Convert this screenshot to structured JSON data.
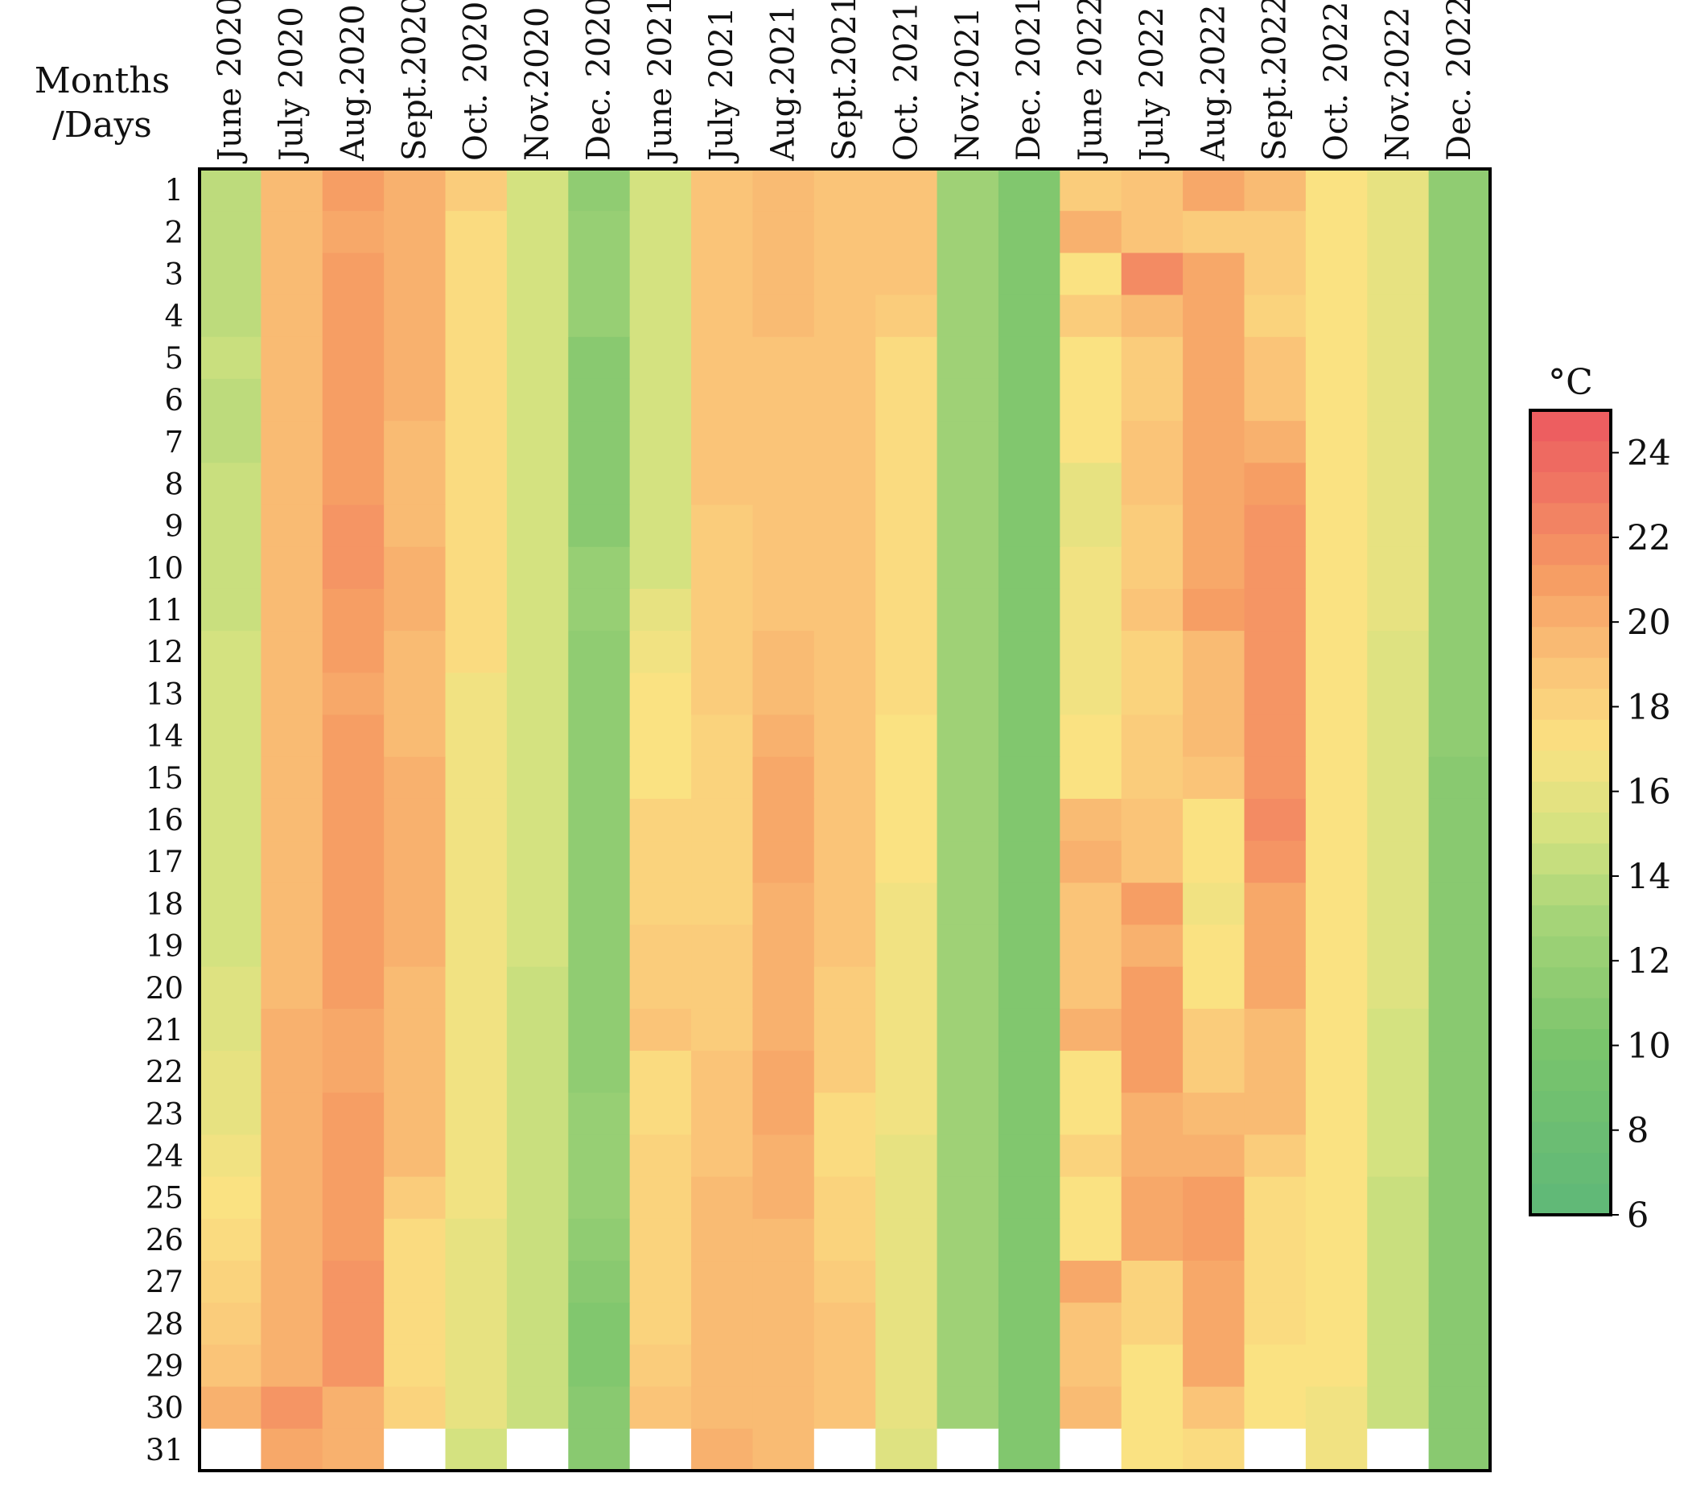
{
  "chart_data": {
    "type": "heatmap",
    "corner_label": [
      "Months",
      "/Days"
    ],
    "colorbar": {
      "unit": "°C",
      "min": 6,
      "max": 25,
      "ticks": [
        24,
        22,
        20,
        18,
        16,
        14,
        12,
        10,
        8,
        6
      ]
    },
    "months": [
      "June 2020",
      "July 2020",
      "Aug.2020",
      "Sept.2020",
      "Oct. 2020",
      "Nov.2020",
      "Dec. 2020",
      "June 2021",
      "July 2021",
      "Aug.2021",
      "Sept.2021",
      "Oct. 2021",
      "Nov.2021",
      "Dec. 2021",
      "June 2022",
      "July 2022",
      "Aug.2022",
      "Sept.2022",
      "Oct. 2022",
      "Nov.2022",
      "Dec. 2022"
    ],
    "days": [
      "1",
      "2",
      "3",
      "4",
      "5",
      "6",
      "7",
      "8",
      "9",
      "10",
      "11",
      "12",
      "13",
      "14",
      "15",
      "16",
      "17",
      "18",
      "19",
      "20",
      "21",
      "22",
      "23",
      "24",
      "25",
      "26",
      "27",
      "28",
      "29",
      "30",
      "31"
    ],
    "values": [
      [
        14,
        19.5,
        21,
        20,
        18.5,
        15,
        11.5,
        15,
        19,
        19.5,
        19,
        19,
        12.5,
        10.5,
        18.5,
        19,
        20.5,
        19.5,
        17,
        16,
        11.5
      ],
      [
        14,
        19.5,
        20.5,
        20,
        17.5,
        15,
        12,
        15,
        19,
        19.5,
        19,
        19,
        12.5,
        10.5,
        20,
        19,
        18.5,
        18.5,
        17,
        16,
        11.5
      ],
      [
        14,
        19.5,
        21,
        20,
        17.5,
        15,
        12,
        15,
        19,
        19.5,
        19,
        19,
        12.5,
        10.5,
        17,
        22,
        20.5,
        18.5,
        17,
        16,
        11.5
      ],
      [
        14,
        19.5,
        21,
        20,
        17.5,
        15,
        12,
        15,
        19,
        19.5,
        19,
        18.5,
        12.5,
        10.5,
        18.5,
        19.5,
        20.5,
        18,
        17,
        16,
        11.5
      ],
      [
        14.5,
        19.5,
        21,
        20,
        17.5,
        15,
        11,
        15,
        19,
        19,
        19,
        17.5,
        12.5,
        10.5,
        17,
        18.5,
        20.5,
        19,
        17,
        16,
        11.5
      ],
      [
        14,
        19.5,
        21,
        20,
        17.5,
        15,
        11,
        15,
        19,
        19,
        19,
        17.5,
        12.5,
        10.5,
        17,
        18.5,
        20.5,
        19,
        17,
        16,
        11.5
      ],
      [
        14,
        19.5,
        21,
        19.5,
        17.5,
        15,
        11,
        15,
        19,
        19,
        19,
        17.5,
        12.5,
        10.5,
        17,
        19,
        20.5,
        20,
        17,
        16,
        11.5
      ],
      [
        14.5,
        19.5,
        21,
        19.5,
        17.5,
        15,
        11,
        15,
        19,
        19,
        19,
        17.5,
        12.5,
        10.5,
        16,
        19,
        20.5,
        21,
        17,
        16,
        11.5
      ],
      [
        14.5,
        19.5,
        21.5,
        19.5,
        17.5,
        15,
        11,
        15,
        18.5,
        19,
        19,
        17.5,
        12.5,
        10.5,
        16,
        18.5,
        20.5,
        21.5,
        17,
        16,
        11.5
      ],
      [
        14.5,
        19.5,
        21.5,
        20,
        17.5,
        15,
        12,
        15,
        18.5,
        19,
        19,
        17.5,
        12.5,
        10.5,
        16.5,
        18.5,
        20.5,
        21.5,
        17,
        16,
        11.5
      ],
      [
        14.5,
        19.5,
        21,
        20,
        17.5,
        15,
        12,
        16,
        18.5,
        19,
        19,
        17.5,
        12.5,
        10.5,
        16.5,
        19,
        21,
        21.5,
        17,
        16,
        11.5
      ],
      [
        15,
        19.5,
        21,
        19.5,
        17.5,
        15,
        11.5,
        16.5,
        18.5,
        19.5,
        19,
        17.5,
        12.5,
        10.5,
        16.5,
        18,
        19.5,
        21.5,
        17,
        15.5,
        11.5
      ],
      [
        15,
        19.5,
        20.5,
        19.5,
        16.5,
        15,
        11.5,
        17,
        18.5,
        19.5,
        19,
        17.5,
        12.5,
        10.5,
        16.5,
        18,
        19.5,
        21.5,
        17,
        15.5,
        11.5
      ],
      [
        15,
        19.5,
        21,
        19.5,
        16.5,
        15,
        11.5,
        17,
        18,
        20,
        19,
        17,
        12.5,
        10.5,
        17,
        18.5,
        19.5,
        21.5,
        17,
        15.5,
        11.5
      ],
      [
        15,
        19.5,
        21,
        20,
        16.5,
        15,
        11.5,
        17,
        18,
        20.5,
        19,
        17,
        12.5,
        10.5,
        17,
        18.5,
        19,
        21.5,
        17,
        15.5,
        11
      ],
      [
        15,
        19.5,
        21,
        20,
        16.5,
        15,
        11.5,
        18,
        18,
        20.5,
        19,
        17,
        12.5,
        10.5,
        19.5,
        19,
        17,
        22,
        17,
        15.5,
        11
      ],
      [
        15,
        19.5,
        21,
        20,
        16.5,
        15,
        11.5,
        18,
        18,
        20.5,
        19,
        17,
        12.5,
        10.5,
        20,
        19,
        17,
        21.5,
        17,
        15.5,
        11
      ],
      [
        15,
        19.5,
        21,
        20,
        16.5,
        15,
        11.5,
        18,
        18,
        20,
        19,
        16.5,
        12.5,
        10.5,
        19,
        21,
        16.5,
        20.5,
        17,
        15.5,
        11
      ],
      [
        15,
        19.5,
        21,
        20,
        16.5,
        15,
        11.5,
        18.5,
        18.5,
        20,
        19,
        16.5,
        12.5,
        10.5,
        19,
        20,
        17,
        20.5,
        17,
        15.5,
        11
      ],
      [
        15.5,
        19.5,
        21,
        19.5,
        16.5,
        14.5,
        11.5,
        18.5,
        18.5,
        20,
        18.5,
        16.5,
        12.5,
        10.5,
        19,
        21,
        17,
        20.5,
        17,
        15.5,
        11
      ],
      [
        15.5,
        20,
        20.5,
        19.5,
        16.5,
        14.5,
        11.5,
        19,
        18.5,
        20,
        18.5,
        16.5,
        12.5,
        10.5,
        20,
        21,
        18.5,
        19.5,
        17,
        15,
        11
      ],
      [
        16,
        20,
        20.5,
        19.5,
        16.5,
        14.5,
        11.5,
        17.5,
        19,
        20.5,
        18.5,
        16.5,
        12.5,
        10.5,
        17,
        21,
        18.5,
        19.5,
        17,
        15,
        11
      ],
      [
        16,
        20,
        21,
        19.5,
        16.5,
        14.5,
        12,
        17.5,
        19,
        20.5,
        17.5,
        16.5,
        12.5,
        10.5,
        17,
        20,
        19.5,
        19.5,
        17,
        15,
        11
      ],
      [
        16.5,
        20,
        21,
        19.5,
        16.5,
        14.5,
        12,
        18,
        19,
        20,
        17.5,
        16,
        12.5,
        10.5,
        18,
        20,
        20,
        18.5,
        17,
        15,
        11
      ],
      [
        17,
        20,
        21,
        18.5,
        16.5,
        14.5,
        12,
        18,
        19.5,
        20,
        18,
        16,
        12.5,
        10.5,
        17,
        20.5,
        21,
        17.5,
        17,
        14.5,
        11
      ],
      [
        17.5,
        20,
        21,
        17.5,
        16,
        14.5,
        11.5,
        18,
        19.5,
        19.5,
        18,
        16,
        12.5,
        10.5,
        17,
        20.5,
        21,
        17.5,
        17,
        14.5,
        11
      ],
      [
        18,
        20,
        21.5,
        17.5,
        16,
        14.5,
        11,
        18,
        19.5,
        19.5,
        18.5,
        16,
        12.5,
        10.5,
        20.5,
        18,
        20.5,
        17.5,
        17,
        14.5,
        11
      ],
      [
        18.5,
        20,
        21.5,
        17.5,
        16,
        14.5,
        10.5,
        18,
        19.5,
        19.5,
        19,
        16,
        12.5,
        10.5,
        19,
        18,
        20.5,
        17.5,
        17,
        14.5,
        11
      ],
      [
        19,
        20,
        21.5,
        17.5,
        16,
        14.5,
        10.5,
        18.5,
        19.5,
        19.5,
        19,
        16,
        12.5,
        10.5,
        19,
        17,
        20.5,
        17,
        17,
        14.5,
        11
      ],
      [
        20,
        21.5,
        20,
        18,
        16,
        14.5,
        11,
        19,
        19.5,
        19.5,
        19,
        16,
        12.5,
        10.5,
        19.5,
        17,
        19,
        17,
        16.5,
        14.5,
        11
      ],
      [
        null,
        20.5,
        20,
        null,
        15,
        null,
        11,
        null,
        20,
        19.5,
        null,
        15.5,
        null,
        10.5,
        null,
        17,
        17.5,
        null,
        16.5,
        null,
        11
      ]
    ]
  }
}
